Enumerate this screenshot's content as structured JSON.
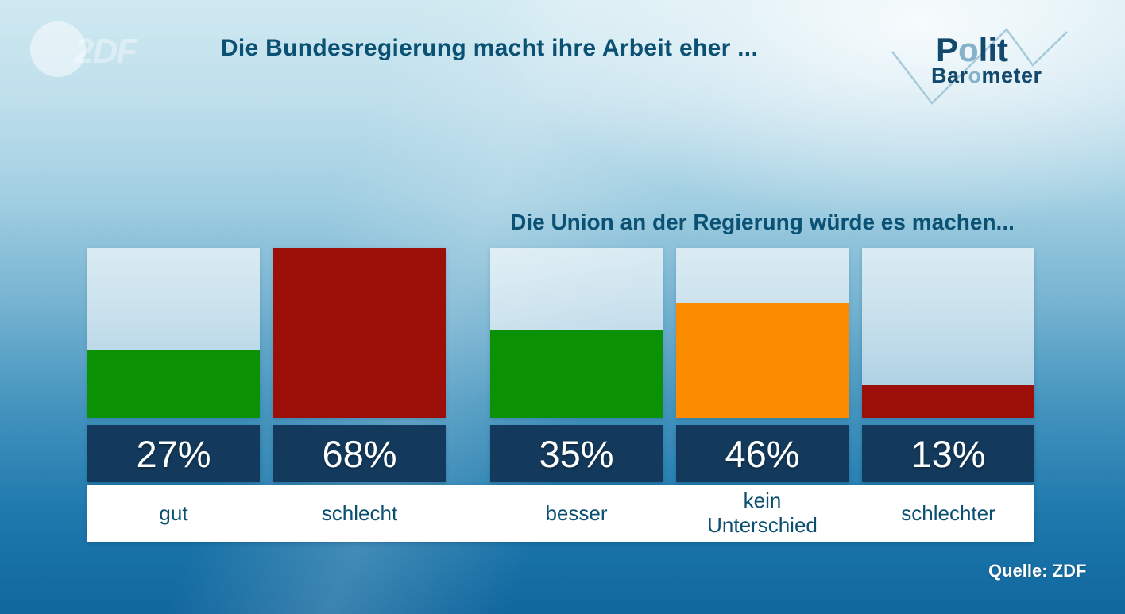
{
  "header": {
    "zdf_logo_text": "2DF",
    "title": "Die Bundesregierung macht ihre Arbeit eher ...",
    "polit_logo": {
      "line1_parts": [
        "P",
        "o",
        "lit"
      ],
      "line2_parts": [
        "Bar",
        "o",
        "meter"
      ]
    }
  },
  "subtitle": "Die Union an der Regierung würde es machen...",
  "source": "Quelle: ZDF",
  "colors": {
    "positive_green": "#0a9104",
    "negative_red": "#9c0f08",
    "neutral_orange": "#fb8c00",
    "value_band_navy": "#133a5c",
    "heading_teal": "#0a5173",
    "logo_dark_blue": "#14496e",
    "logo_light_blue": "#85b2ca"
  },
  "chart_data": {
    "type": "bar",
    "title": "Die Bundesregierung macht ihre Arbeit eher ...",
    "group2_title": "Die Union an der Regierung würde es machen...",
    "unit": "%",
    "ylim": [
      0,
      68
    ],
    "scale_max": 68,
    "grid": false,
    "legend": false,
    "categories": [
      "gut",
      "schlecht",
      "besser",
      "kein Unterschied",
      "schlechter"
    ],
    "values": [
      27,
      68,
      35,
      46,
      13
    ],
    "groups": [
      {
        "question": "Die Bundesregierung macht ihre Arbeit eher ...",
        "categories": [
          "gut",
          "schlecht"
        ],
        "values": [
          27,
          68
        ]
      },
      {
        "question": "Die Union an der Regierung würde es machen...",
        "categories": [
          "besser",
          "kein Unterschied",
          "schlechter"
        ],
        "values": [
          35,
          46,
          13
        ]
      }
    ],
    "bars": [
      {
        "label": "gut",
        "value": 27,
        "value_label": "27%",
        "color": "#0a9104"
      },
      {
        "label": "schlecht",
        "value": 68,
        "value_label": "68%",
        "color": "#9c0f08"
      },
      {
        "label": "besser",
        "value": 35,
        "value_label": "35%",
        "color": "#0a9104"
      },
      {
        "label": "kein\nUnterschied",
        "value": 46,
        "value_label": "46%",
        "color": "#fb8c00"
      },
      {
        "label": "schlechter",
        "value": 13,
        "value_label": "13%",
        "color": "#9c0f08"
      }
    ]
  }
}
